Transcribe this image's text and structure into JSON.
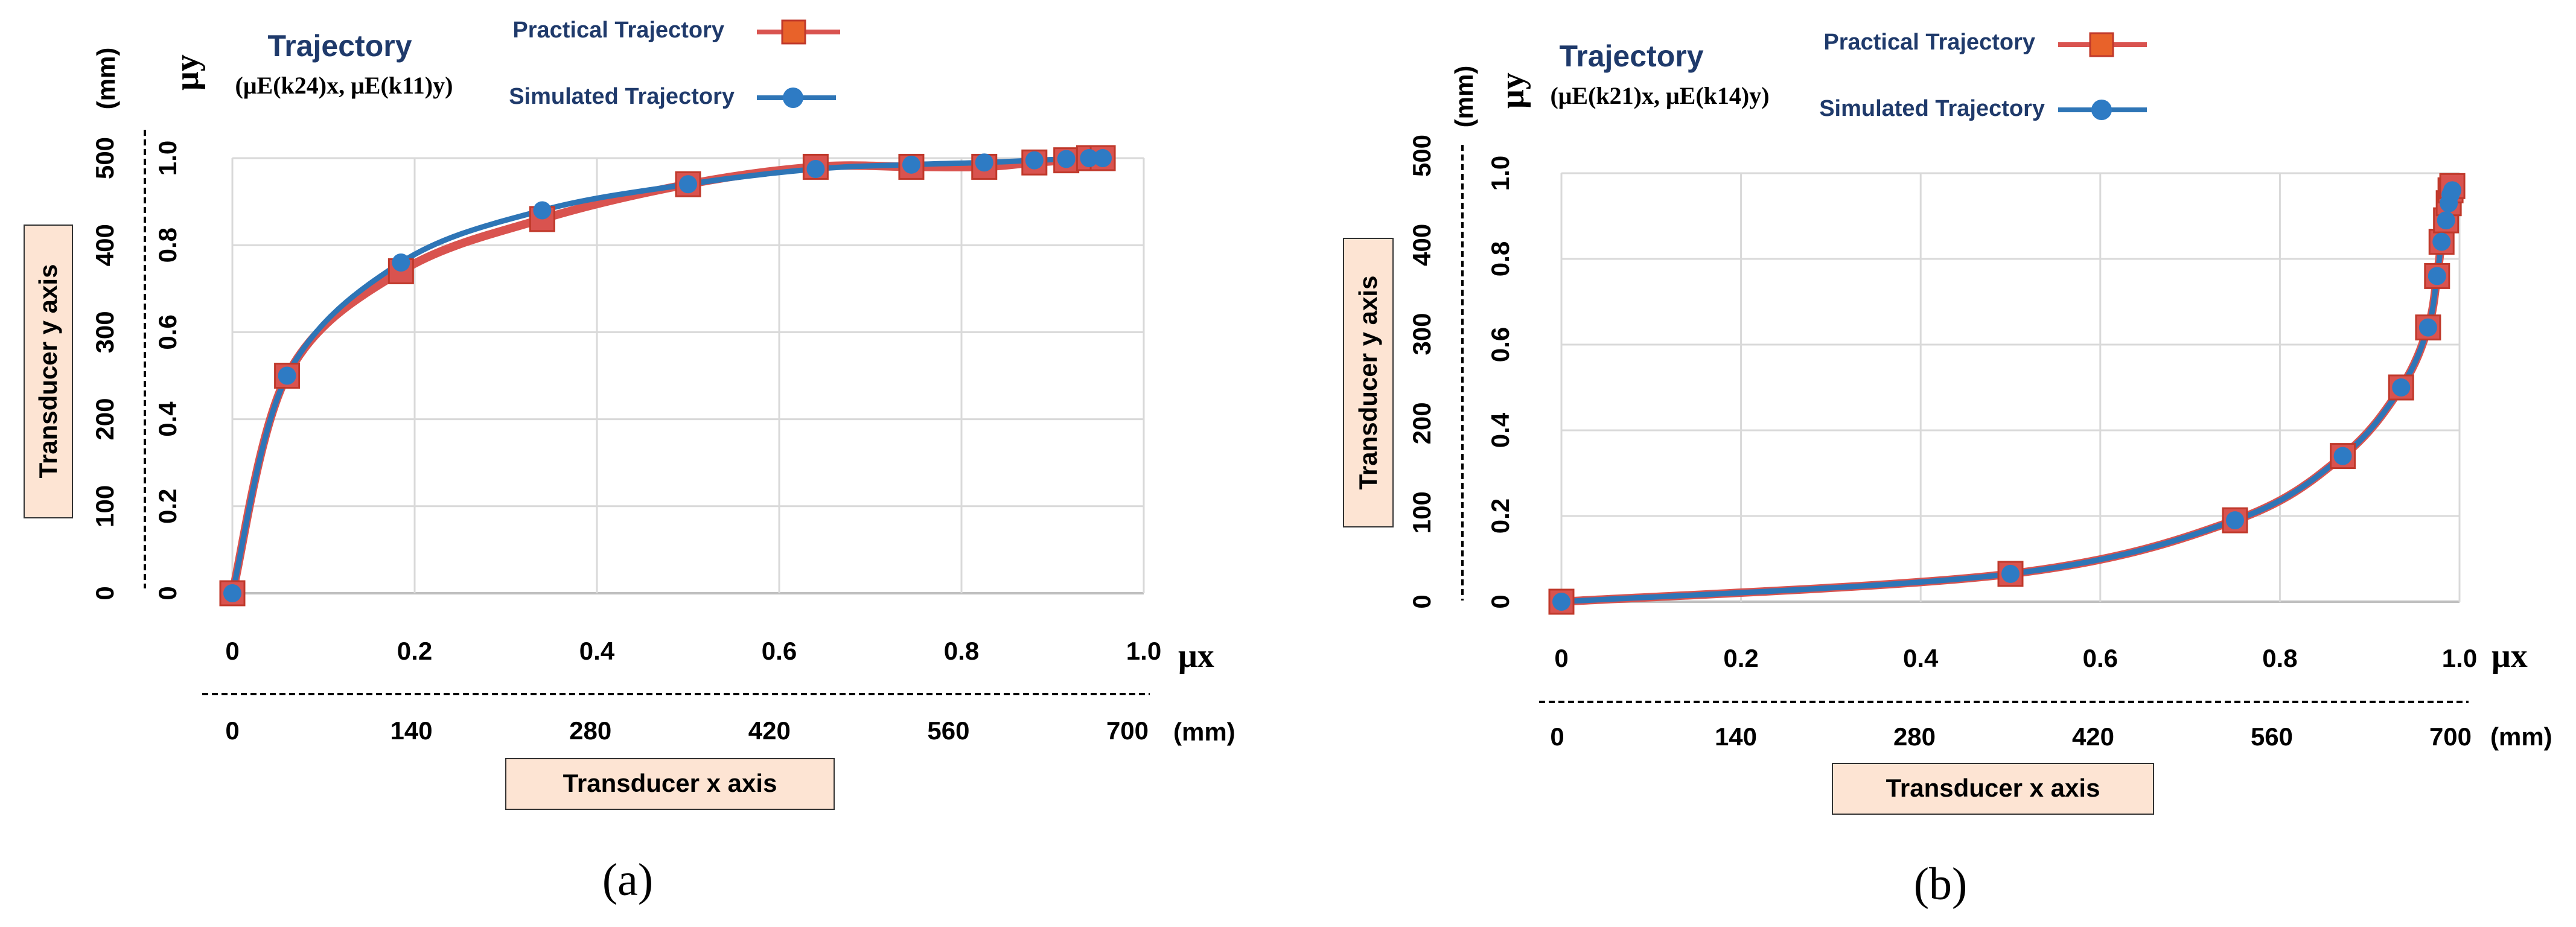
{
  "figure": {
    "colors": {
      "practical": "#d9534f",
      "practical_marker_fill": "#e8622a",
      "simulated": "#2e75b6",
      "simulated_marker": "#2e7bc4",
      "grid": "#d9d9d9",
      "title": "#1f3a6b",
      "label_box": "#fde4d3"
    },
    "panels": [
      {
        "id": "a",
        "caption": "(a)",
        "legend": {
          "title": "Trajectory",
          "subtitle": "(μE(k24)x, μE(k11)y)",
          "practical": "Practical Trajectory",
          "simulated": "Simulated Trajectory"
        },
        "y_axis_label": "μy",
        "x_axis_label": "μx",
        "mm_y_unit": "(mm)",
        "mm_x_unit": "(mm)",
        "transducer_y": "Transducer y axis",
        "transducer_x": "Transducer x axis",
        "mm_x_ticks": [
          "0",
          "140",
          "280",
          "420",
          "560",
          "700"
        ],
        "mm_y_ticks": [
          "0",
          "100",
          "200",
          "300",
          "400",
          "500"
        ]
      },
      {
        "id": "b",
        "caption": "(b)",
        "legend": {
          "title": "Trajectory",
          "subtitle": "(μE(k21)x, μE(k14)y)",
          "practical": "Practical Trajectory",
          "simulated": "Simulated Trajectory"
        },
        "y_axis_label": "μy",
        "x_axis_label": "μx",
        "mm_y_unit": "(mm)",
        "mm_x_unit": "(mm)",
        "transducer_y": "Transducer y axis",
        "transducer_x": "Transducer x axis",
        "mm_x_ticks": [
          "0",
          "140",
          "280",
          "420",
          "560",
          "700"
        ],
        "mm_y_ticks": [
          "0",
          "100",
          "200",
          "300",
          "400",
          "500"
        ]
      }
    ]
  },
  "chart_data": [
    {
      "type": "line",
      "panel": "a",
      "title": "Trajectory",
      "xlabel": "μx",
      "ylabel": "μy",
      "xlim": [
        0,
        1.0
      ],
      "ylim": [
        0,
        1.0
      ],
      "x_ticks": [
        "0",
        "0.2",
        "0.4",
        "0.6",
        "0.8",
        "1.0"
      ],
      "y_ticks": [
        "0",
        "0.2",
        "0.4",
        "0.6",
        "0.8",
        "1.0"
      ],
      "series": [
        {
          "name": "Practical Trajectory",
          "x": [
            0.0,
            0.06,
            0.185,
            0.34,
            0.5,
            0.64,
            0.745,
            0.825,
            0.88,
            0.915,
            0.94,
            0.955
          ],
          "y": [
            0.0,
            0.5,
            0.74,
            0.86,
            0.94,
            0.98,
            0.98,
            0.98,
            0.99,
            0.995,
            1.0,
            1.0
          ]
        },
        {
          "name": "Simulated Trajectory",
          "x": [
            0.0,
            0.06,
            0.185,
            0.34,
            0.5,
            0.64,
            0.745,
            0.825,
            0.88,
            0.915,
            0.94,
            0.955
          ],
          "y": [
            0.0,
            0.5,
            0.76,
            0.88,
            0.94,
            0.975,
            0.985,
            0.99,
            0.995,
            0.998,
            1.0,
            1.0
          ]
        }
      ]
    },
    {
      "type": "line",
      "panel": "b",
      "title": "Trajectory",
      "xlabel": "μx",
      "ylabel": "μy",
      "xlim": [
        0,
        1.0
      ],
      "ylim": [
        0,
        1.0
      ],
      "x_ticks": [
        "0",
        "0.2",
        "0.4",
        "0.6",
        "0.8",
        "1.0"
      ],
      "y_ticks": [
        "0",
        "0.2",
        "0.4",
        "0.6",
        "0.8",
        "1.0"
      ],
      "series": [
        {
          "name": "Practical Trajectory",
          "x": [
            0.0,
            0.5,
            0.75,
            0.87,
            0.935,
            0.965,
            0.975,
            0.98,
            0.985,
            0.988,
            0.99,
            0.992
          ],
          "y": [
            0.0,
            0.065,
            0.19,
            0.34,
            0.5,
            0.64,
            0.76,
            0.84,
            0.89,
            0.93,
            0.96,
            0.97
          ]
        },
        {
          "name": "Simulated Trajectory",
          "x": [
            0.0,
            0.5,
            0.75,
            0.87,
            0.935,
            0.965,
            0.975,
            0.98,
            0.985,
            0.988,
            0.99,
            0.992
          ],
          "y": [
            0.0,
            0.065,
            0.19,
            0.34,
            0.5,
            0.64,
            0.76,
            0.84,
            0.89,
            0.93,
            0.95,
            0.96
          ]
        }
      ]
    }
  ]
}
